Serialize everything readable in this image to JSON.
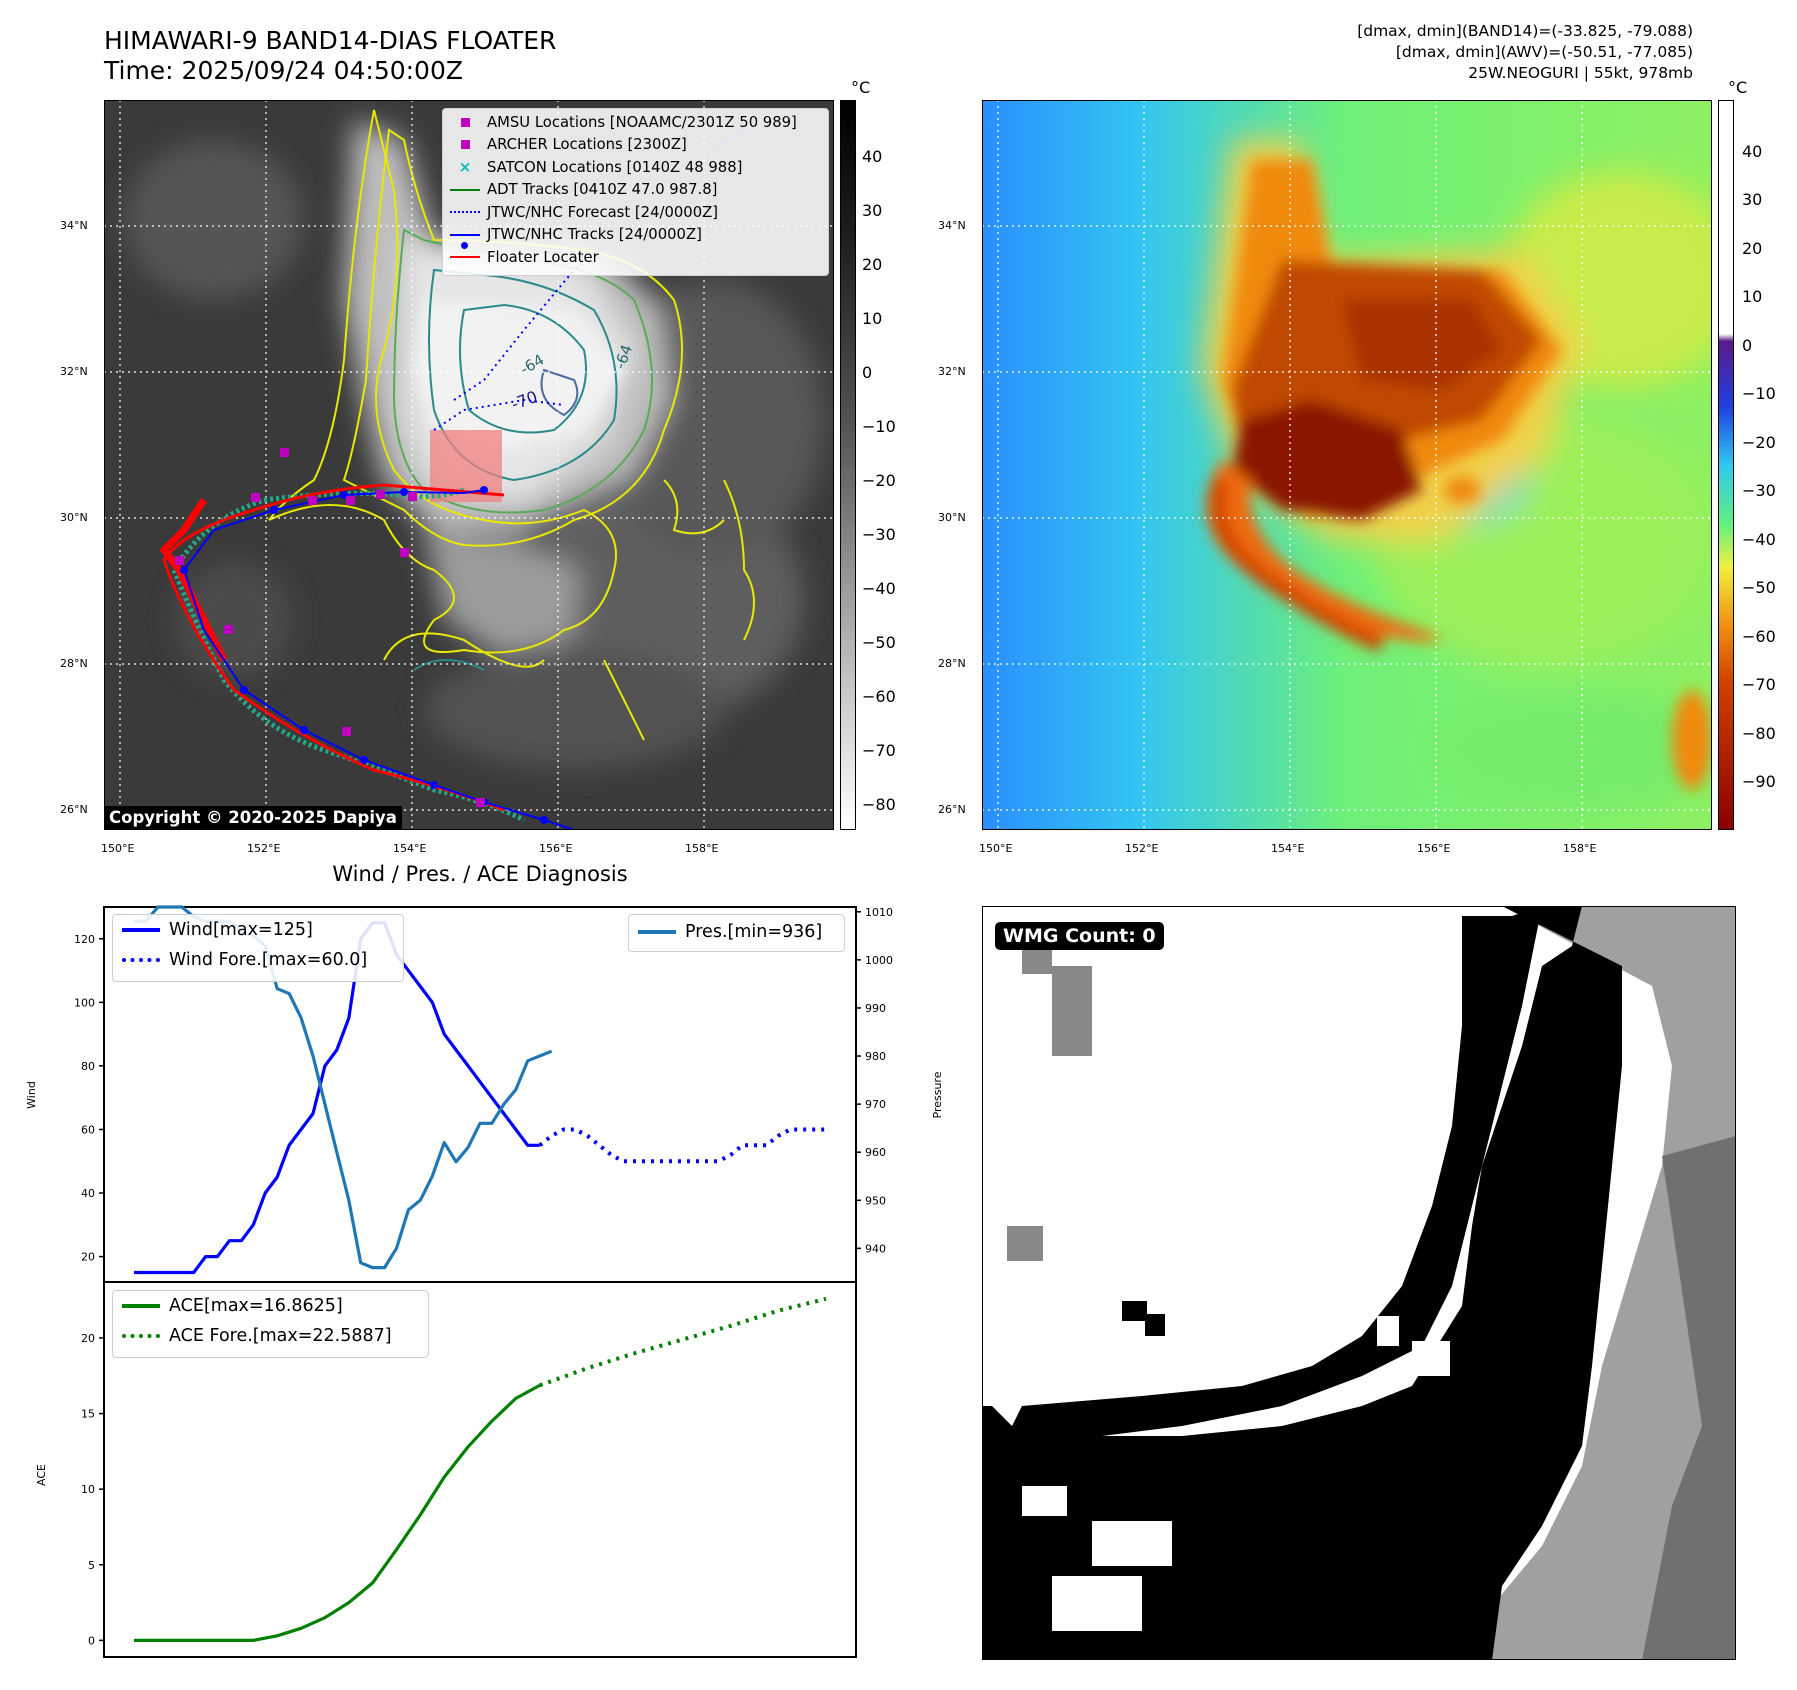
{
  "header": {
    "title_line1": "HIMAWARI-9 BAND14-DIAS FLOATER",
    "title_line2": "Time: 2025/09/24 04:50:00Z",
    "info_line1": "[dmax, dmin](BAND14)=(-33.825, -79.088)",
    "info_line2": "[dmax, dmin](AWV)=(-50.51, -77.085)",
    "info_line3": "25W.NEOGURI | 55kt, 978mb"
  },
  "maps": {
    "lat_labels": [
      "34°N",
      "32°N",
      "30°N",
      "28°N",
      "26°N"
    ],
    "lon_labels": [
      "150°E",
      "152°E",
      "154°E",
      "156°E",
      "158°E"
    ],
    "unit": "°C",
    "copyright": "Copyright © 2020-2025 Dapiya",
    "contour_labels": [
      "-70",
      "-64",
      "-64"
    ],
    "legend": [
      {
        "label": "AMSU Locations [NOAAMC/2301Z 50 989]",
        "color": "#bf00bf",
        "marker": "square"
      },
      {
        "label": "ARCHER Locations [2300Z]",
        "color": "#bf00bf",
        "marker": "square"
      },
      {
        "label": "SATCON Locations [0140Z 48 988]",
        "color": "#00bfbf",
        "marker": "x"
      },
      {
        "label": "ADT Tracks [0410Z 47.0 987.8]",
        "color": "#008000",
        "marker": "line"
      },
      {
        "label": "JTWC/NHC Forecast [24/0000Z]",
        "color": "#0000ff",
        "marker": "dotted"
      },
      {
        "label": "JTWC/NHC Tracks [24/0000Z]",
        "color": "#0000ff",
        "marker": "line-dot"
      },
      {
        "label": "Floater Locater",
        "color": "#ff0000",
        "marker": "line"
      }
    ],
    "gray_colorbar_ticks": [
      "40",
      "30",
      "20",
      "10",
      "0",
      "−10",
      "−20",
      "−30",
      "−40",
      "−50",
      "−60",
      "−70",
      "−80"
    ],
    "color_colorbar_ticks": [
      "40",
      "30",
      "20",
      "10",
      "0",
      "−10",
      "−20",
      "−30",
      "−40",
      "−50",
      "−60",
      "−70",
      "−80",
      "−90"
    ]
  },
  "diagnosis": {
    "title": "Wind / Pres. / ACE Diagnosis",
    "wind_ylabel": "Wind",
    "pressure_ylabel": "Pressure",
    "ace_ylabel": "ACE",
    "wmg_label": "WMG Count: 0"
  },
  "chart_data": [
    {
      "type": "line",
      "title": "Wind / Pres. / ACE Diagnosis",
      "ylabel": "Wind",
      "y2label": "Pressure",
      "ylim": [
        12,
        130
      ],
      "y2lim": [
        933,
        1011
      ],
      "yticks": [
        20,
        40,
        60,
        80,
        100,
        120
      ],
      "y2ticks": [
        940,
        950,
        960,
        970,
        980,
        990,
        1000,
        1010
      ],
      "legend_left": [
        "Wind[max=125]",
        "Wind Fore.[max=60.0]"
      ],
      "legend_right": [
        "Pres.[min=936]"
      ],
      "series": [
        {
          "name": "Wind[max=125]",
          "color": "#0000ff",
          "style": "solid",
          "axis": "left",
          "x": [
            0,
            1,
            2,
            3,
            4,
            5,
            6,
            7,
            8,
            9,
            10,
            11,
            12,
            13,
            14,
            15,
            16,
            17,
            18,
            19,
            20,
            21,
            22,
            23,
            24,
            25,
            26,
            27,
            28,
            29,
            30,
            31,
            32,
            33,
            34
          ],
          "values": [
            15,
            15,
            15,
            15,
            15,
            15,
            20,
            20,
            25,
            25,
            30,
            40,
            45,
            55,
            60,
            65,
            80,
            85,
            95,
            120,
            125,
            125,
            115,
            110,
            105,
            100,
            90,
            85,
            80,
            75,
            70,
            65,
            60,
            55,
            55
          ]
        },
        {
          "name": "Wind Fore.[max=60.0]",
          "color": "#0000ff",
          "style": "dotted",
          "axis": "left",
          "x": [
            34,
            35,
            36,
            37,
            38,
            39,
            40,
            41,
            42,
            43,
            44,
            45,
            46,
            47,
            48,
            49,
            50,
            51,
            52,
            53,
            54,
            55,
            56,
            57,
            58
          ],
          "values": [
            55,
            58,
            60,
            60,
            58,
            55,
            52,
            50,
            50,
            50,
            50,
            50,
            50,
            50,
            50,
            50,
            52,
            55,
            55,
            55,
            58,
            60,
            60,
            60,
            60
          ]
        },
        {
          "name": "Pres.[min=936]",
          "color": "#1f77b4",
          "style": "solid",
          "axis": "right",
          "x": [
            0,
            1,
            2,
            3,
            4,
            5,
            6,
            7,
            8,
            9,
            10,
            11,
            12,
            13,
            14,
            15,
            16,
            17,
            18,
            19,
            20,
            21,
            22,
            23,
            24,
            25,
            26,
            27,
            28,
            29,
            30,
            31,
            32,
            33,
            34,
            35
          ],
          "values": [
            1008,
            1008,
            1011,
            1011,
            1011,
            1009,
            1008,
            1008,
            1008,
            1006,
            1005,
            1003,
            994,
            993,
            988,
            980,
            970,
            960,
            950,
            937,
            936,
            936,
            940,
            948,
            950,
            955,
            962,
            958,
            961,
            966,
            966,
            970,
            973,
            979,
            980,
            981
          ]
        }
      ]
    },
    {
      "type": "line",
      "ylabel": "ACE",
      "ylim": [
        -1.1,
        23.7
      ],
      "yticks": [
        0,
        5,
        10,
        15,
        20
      ],
      "legend": [
        "ACE[max=16.8625]",
        "ACE Fore.[max=22.5887]"
      ],
      "series": [
        {
          "name": "ACE[max=16.8625]",
          "color": "#008000",
          "style": "solid",
          "x": [
            0,
            2,
            4,
            6,
            8,
            10,
            12,
            14,
            16,
            18,
            20,
            22,
            24,
            26,
            28,
            30,
            32,
            34
          ],
          "values": [
            0,
            0,
            0,
            0,
            0,
            0,
            0.3,
            0.8,
            1.5,
            2.5,
            3.8,
            6.0,
            8.3,
            10.8,
            12.8,
            14.5,
            16.0,
            16.86
          ]
        },
        {
          "name": "ACE Fore.[max=22.5887]",
          "color": "#008000",
          "style": "dotted",
          "x": [
            34,
            38,
            42,
            46,
            50,
            54,
            58
          ],
          "values": [
            16.86,
            18.0,
            19.0,
            19.9,
            20.8,
            21.8,
            22.59
          ]
        }
      ]
    }
  ]
}
